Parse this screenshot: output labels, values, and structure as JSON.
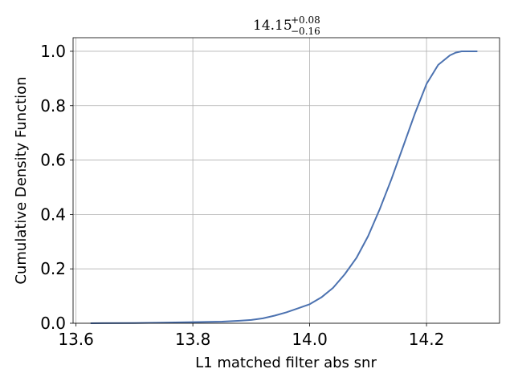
{
  "chart_data": {
    "type": "line",
    "title": {
      "value": "14.15",
      "upper": "+0.08",
      "lower": "−0.16"
    },
    "xlabel": "L1 matched filter abs snr",
    "ylabel": "Cumulative Density Function",
    "xlim": [
      13.595,
      14.325
    ],
    "ylim": [
      0.0,
      1.05
    ],
    "xticks": [
      13.6,
      13.8,
      14.0,
      14.2
    ],
    "xtick_labels": [
      "13.6",
      "13.8",
      "14.0",
      "14.2"
    ],
    "yticks": [
      0.0,
      0.2,
      0.4,
      0.6,
      0.8,
      1.0
    ],
    "ytick_labels": [
      "0.0",
      "0.2",
      "0.4",
      "0.6",
      "0.8",
      "1.0"
    ],
    "grid": true,
    "series": [
      {
        "color": "#4c72b0",
        "x": [
          13.625,
          13.7,
          13.75,
          13.8,
          13.85,
          13.88,
          13.9,
          13.92,
          13.94,
          13.96,
          13.98,
          14.0,
          14.02,
          14.04,
          14.06,
          14.08,
          14.1,
          14.12,
          14.14,
          14.16,
          14.18,
          14.2,
          14.22,
          14.24,
          14.25,
          14.26,
          14.27,
          14.287
        ],
        "y": [
          0.0,
          0.001,
          0.002,
          0.004,
          0.006,
          0.009,
          0.012,
          0.018,
          0.028,
          0.04,
          0.055,
          0.07,
          0.095,
          0.13,
          0.18,
          0.24,
          0.32,
          0.42,
          0.53,
          0.65,
          0.77,
          0.88,
          0.95,
          0.985,
          0.995,
          1.0,
          1.0,
          1.0
        ]
      }
    ]
  }
}
